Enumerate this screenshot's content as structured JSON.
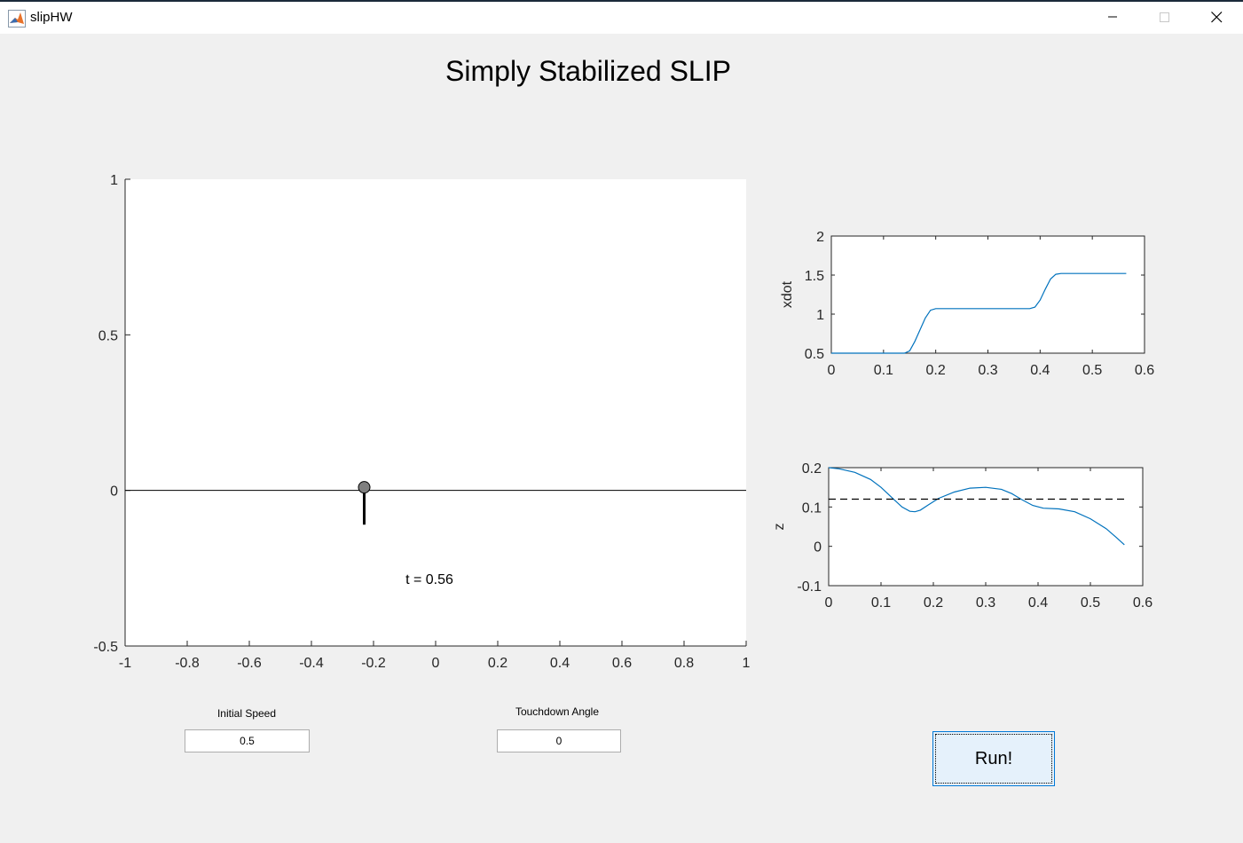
{
  "window": {
    "title": "slipHW"
  },
  "figure_title": "Simply Stabilized SLIP",
  "sim_label": "t = 0.56",
  "controls": {
    "initial_speed": {
      "label": "Initial Speed",
      "value": "0.5"
    },
    "touchdown_angle": {
      "label": "Touchdown Angle",
      "value": "0"
    },
    "run_label": "Run!"
  },
  "chart_data": [
    {
      "type": "line",
      "name": "animation",
      "xlim": [
        -1,
        1
      ],
      "ylim": [
        -0.5,
        1
      ],
      "xticks": [
        "-1",
        "-0.8",
        "-0.6",
        "-0.4",
        "-0.2",
        "0",
        "0.2",
        "0.4",
        "0.6",
        "0.8",
        "1"
      ],
      "yticks": [
        "-0.5",
        "0",
        "0.5",
        "1"
      ],
      "ground_y": 0,
      "mass": {
        "x": -0.23,
        "y": 0.01
      },
      "leg": {
        "x": -0.23,
        "y_top": 0.01,
        "y_bottom": -0.11
      },
      "annotation": {
        "text": "t = 0.56",
        "x": -0.02,
        "y": -0.3
      }
    },
    {
      "type": "line",
      "ylabel": "xdot",
      "xlim": [
        0,
        0.6
      ],
      "ylim": [
        0.5,
        2
      ],
      "xticks": [
        "0",
        "0.1",
        "0.2",
        "0.3",
        "0.4",
        "0.5",
        "0.6"
      ],
      "yticks": [
        "0.5",
        "1",
        "1.5",
        "2"
      ],
      "series": [
        {
          "color": "#0072bd",
          "x": [
            0,
            0.14,
            0.15,
            0.16,
            0.17,
            0.18,
            0.19,
            0.2,
            0.3,
            0.38,
            0.39,
            0.4,
            0.41,
            0.42,
            0.43,
            0.44,
            0.5,
            0.565
          ],
          "y": [
            0.5,
            0.5,
            0.53,
            0.65,
            0.8,
            0.95,
            1.05,
            1.07,
            1.07,
            1.07,
            1.09,
            1.18,
            1.32,
            1.45,
            1.51,
            1.52,
            1.52,
            1.52
          ]
        }
      ]
    },
    {
      "type": "line",
      "ylabel": "z",
      "xlim": [
        0,
        0.6
      ],
      "ylim": [
        -0.1,
        0.2
      ],
      "xticks": [
        "0",
        "0.1",
        "0.2",
        "0.3",
        "0.4",
        "0.5",
        "0.6"
      ],
      "yticks": [
        "-0.1",
        "0",
        "0.1",
        "0.2"
      ],
      "series": [
        {
          "color": "#0072bd",
          "x": [
            0,
            0.02,
            0.05,
            0.08,
            0.1,
            0.12,
            0.14,
            0.155,
            0.165,
            0.175,
            0.19,
            0.21,
            0.24,
            0.27,
            0.3,
            0.33,
            0.35,
            0.37,
            0.39,
            0.41,
            0.44,
            0.47,
            0.5,
            0.53,
            0.55,
            0.565
          ],
          "y": [
            0.2,
            0.197,
            0.188,
            0.17,
            0.15,
            0.125,
            0.1,
            0.089,
            0.088,
            0.092,
            0.105,
            0.122,
            0.138,
            0.148,
            0.15,
            0.145,
            0.134,
            0.118,
            0.104,
            0.097,
            0.095,
            0.088,
            0.07,
            0.045,
            0.022,
            0.004
          ]
        },
        {
          "color": "#000000",
          "dashed": true,
          "x": [
            0,
            0.565
          ],
          "y": [
            0.12,
            0.12
          ]
        }
      ]
    }
  ]
}
